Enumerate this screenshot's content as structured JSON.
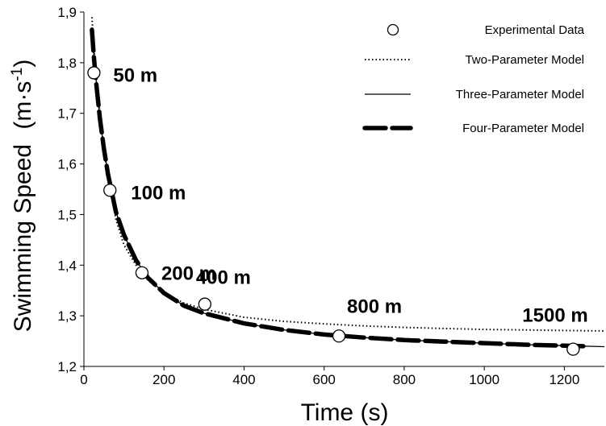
{
  "chart_data": {
    "type": "line",
    "title": "",
    "xlabel": "Time (s)",
    "ylabel_main": "Swimming Speed",
    "ylabel_unit_base": "(m·s",
    "ylabel_unit_sup": "-1",
    "ylabel_unit_close": ")",
    "xlim": [
      0,
      1300
    ],
    "ylim": [
      1.2,
      1.9
    ],
    "xticks": [
      0,
      200,
      400,
      600,
      800,
      1000,
      1200
    ],
    "xtick_labels": [
      "0",
      "200",
      "400",
      "600",
      "800",
      "1000",
      "1200"
    ],
    "yticks": [
      1.2,
      1.3,
      1.4,
      1.5,
      1.6,
      1.7,
      1.8,
      1.9
    ],
    "ytick_labels": [
      "1,2",
      "1,3",
      "1,4",
      "1,5",
      "1,6",
      "1,7",
      "1,8",
      "1,9"
    ],
    "grid": false,
    "legend_position": "top-right",
    "series": [
      {
        "name": "Experimental Data",
        "style": "open-circle",
        "points": [
          {
            "x": 25,
            "y": 1.78,
            "label": "50 m"
          },
          {
            "x": 65,
            "y": 1.548,
            "label": "100 m"
          },
          {
            "x": 145,
            "y": 1.385,
            "label": "200 m"
          },
          {
            "x": 302,
            "y": 1.323,
            "label": "400 m"
          },
          {
            "x": 637,
            "y": 1.26,
            "label": "800 m"
          },
          {
            "x": 1222,
            "y": 1.234,
            "label": "1500 m"
          }
        ]
      },
      {
        "name": "Two-Parameter Model",
        "style": "dotted",
        "points": [
          [
            20,
            1.89
          ],
          [
            25,
            1.83
          ],
          [
            30,
            1.78
          ],
          [
            40,
            1.7
          ],
          [
            50,
            1.63
          ],
          [
            60,
            1.575
          ],
          [
            80,
            1.49
          ],
          [
            100,
            1.44
          ],
          [
            130,
            1.4
          ],
          [
            160,
            1.37
          ],
          [
            200,
            1.345
          ],
          [
            250,
            1.325
          ],
          [
            300,
            1.313
          ],
          [
            400,
            1.297
          ],
          [
            500,
            1.289
          ],
          [
            600,
            1.284
          ],
          [
            700,
            1.28
          ],
          [
            800,
            1.277
          ],
          [
            900,
            1.275
          ],
          [
            1000,
            1.273
          ],
          [
            1100,
            1.272
          ],
          [
            1200,
            1.271
          ],
          [
            1300,
            1.27
          ]
        ]
      },
      {
        "name": "Three-Parameter Model",
        "style": "thin-solid",
        "points": [
          [
            20,
            1.87
          ],
          [
            25,
            1.815
          ],
          [
            30,
            1.77
          ],
          [
            40,
            1.69
          ],
          [
            50,
            1.63
          ],
          [
            60,
            1.58
          ],
          [
            80,
            1.505
          ],
          [
            100,
            1.46
          ],
          [
            130,
            1.41
          ],
          [
            160,
            1.375
          ],
          [
            200,
            1.345
          ],
          [
            250,
            1.32
          ],
          [
            300,
            1.305
          ],
          [
            400,
            1.285
          ],
          [
            500,
            1.272
          ],
          [
            600,
            1.263
          ],
          [
            700,
            1.257
          ],
          [
            800,
            1.252
          ],
          [
            900,
            1.249
          ],
          [
            1000,
            1.246
          ],
          [
            1100,
            1.243
          ],
          [
            1200,
            1.241
          ],
          [
            1300,
            1.239
          ]
        ]
      },
      {
        "name": "Four-Parameter Model",
        "style": "thick-dashed",
        "points": [
          [
            20,
            1.865
          ],
          [
            25,
            1.81
          ],
          [
            30,
            1.765
          ],
          [
            40,
            1.69
          ],
          [
            50,
            1.63
          ],
          [
            60,
            1.58
          ],
          [
            80,
            1.505
          ],
          [
            100,
            1.46
          ],
          [
            130,
            1.41
          ],
          [
            160,
            1.375
          ],
          [
            200,
            1.345
          ],
          [
            250,
            1.32
          ],
          [
            300,
            1.305
          ],
          [
            400,
            1.285
          ],
          [
            500,
            1.272
          ],
          [
            600,
            1.263
          ],
          [
            700,
            1.257
          ],
          [
            800,
            1.252
          ],
          [
            900,
            1.249
          ],
          [
            1000,
            1.246
          ],
          [
            1100,
            1.243
          ],
          [
            1200,
            1.241
          ],
          [
            1250,
            1.24
          ]
        ]
      }
    ],
    "colors": {
      "line": "#000000",
      "background": "#ffffff"
    }
  }
}
